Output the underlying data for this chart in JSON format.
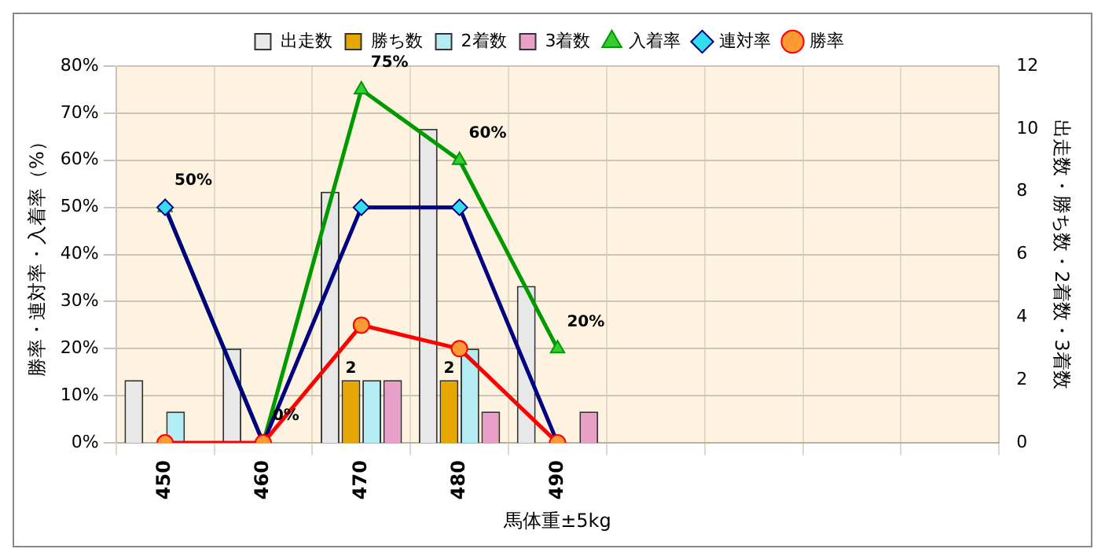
{
  "chart_data": {
    "type": "bar",
    "xlabel": "馬体重±5kg",
    "ylabel": "勝率・連対率・入着率（%）",
    "y2label": "出走数・勝ち数・2着数・3着数",
    "categories": [
      "450",
      "460",
      "470",
      "480",
      "490",
      null,
      null,
      null,
      null
    ],
    "series": [
      {
        "name": "出走数",
        "axis": "y2",
        "color": "#e8e8e8",
        "values": [
          2,
          3,
          8,
          10,
          5,
          null,
          null,
          null,
          null
        ]
      },
      {
        "name": "勝ち数",
        "axis": "y2",
        "color": "#e6a800",
        "values": [
          0,
          0,
          2,
          2,
          0,
          null,
          null,
          null,
          null
        ],
        "value_labels": [
          null,
          null,
          "2",
          "2",
          null,
          null,
          null,
          null,
          null
        ]
      },
      {
        "name": "2着数",
        "axis": "y2",
        "color": "#b4ecf4",
        "values": [
          1,
          0,
          2,
          3,
          0,
          null,
          null,
          null,
          null
        ]
      },
      {
        "name": "3着数",
        "axis": "y2",
        "color": "#e8a0c8",
        "values": [
          0,
          0,
          2,
          1,
          1,
          null,
          null,
          null,
          null
        ]
      },
      {
        "name": "入着率",
        "type": "line",
        "color": "#009900",
        "marker": "triangle",
        "values": [
          50,
          0,
          75,
          60,
          20,
          null,
          null,
          null,
          null
        ],
        "value_labels": [
          "50%",
          "0%",
          "75%",
          "60%",
          "20%",
          null,
          null,
          null,
          null
        ]
      },
      {
        "name": "連対率",
        "type": "line",
        "color": "#000080",
        "marker": "diamond",
        "values": [
          50,
          0,
          50,
          50,
          0,
          null,
          null,
          null,
          null
        ]
      },
      {
        "name": "勝率",
        "type": "line",
        "color": "#ff0000",
        "marker": "circle",
        "values": [
          0,
          0,
          25,
          20,
          0,
          null,
          null,
          null,
          null
        ]
      }
    ],
    "ylim": [
      0,
      80
    ],
    "yticks": [
      {
        "value": 0,
        "label": "0%"
      },
      {
        "value": 10,
        "label": "10%"
      },
      {
        "value": 20,
        "label": "20%"
      },
      {
        "value": 30,
        "label": "30%"
      },
      {
        "value": 40,
        "label": "40%"
      },
      {
        "value": 50,
        "label": "50%"
      },
      {
        "value": 60,
        "label": "60%"
      },
      {
        "value": 70,
        "label": "70%"
      },
      {
        "value": 80,
        "label": "80%"
      }
    ],
    "y2lim": [
      0,
      12
    ],
    "y2ticks": [
      0,
      2,
      4,
      6,
      8,
      10,
      12
    ],
    "grid": true,
    "legend": "top",
    "line_style": "solid"
  }
}
